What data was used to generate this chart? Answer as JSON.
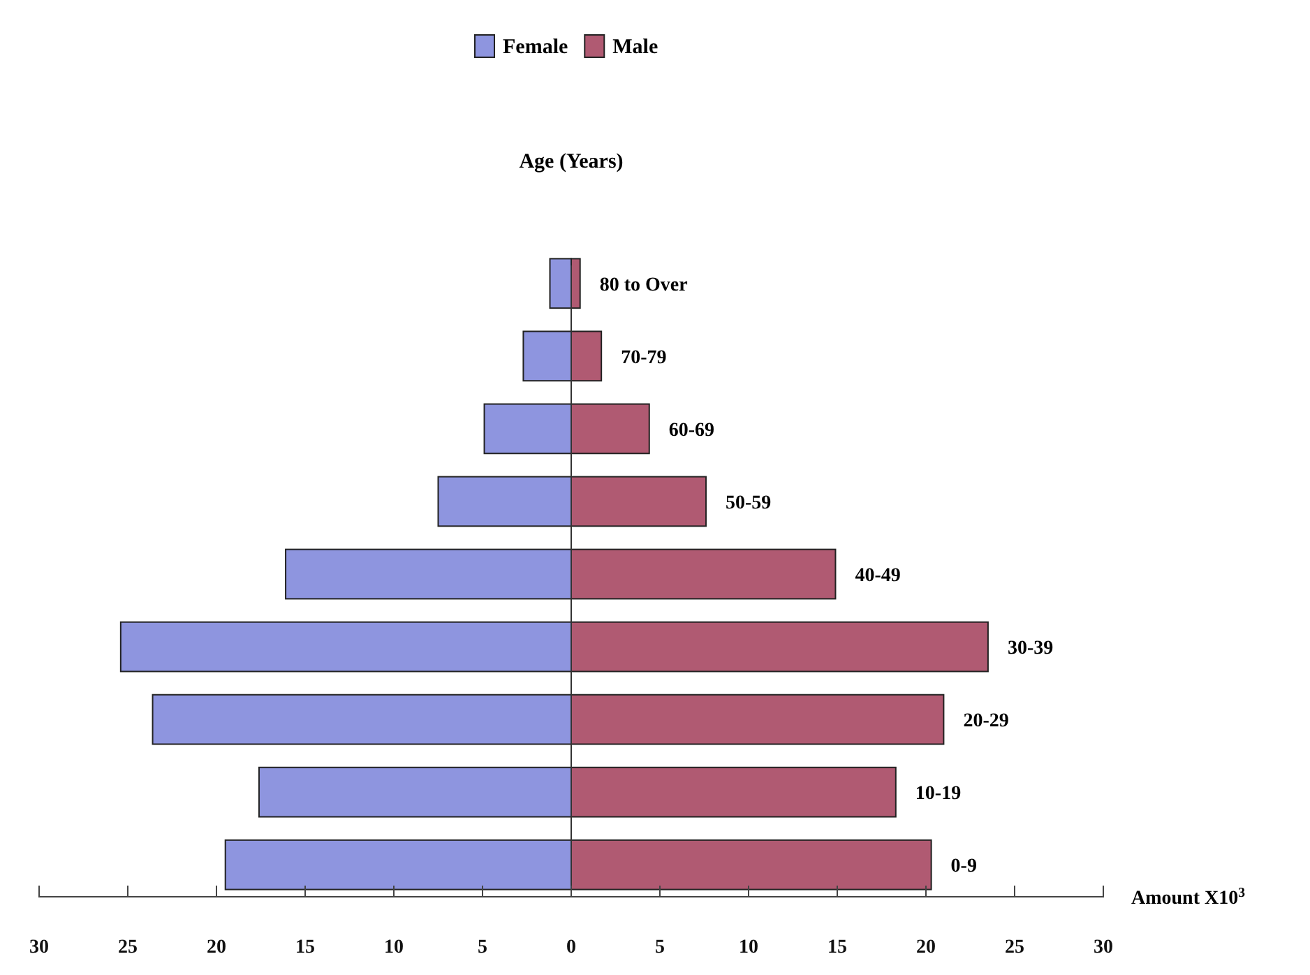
{
  "chart_data": {
    "type": "bar",
    "orientation": "horizontal",
    "stacked": true,
    "ylabel": "Age (Years)",
    "xlabel": "Amount X10$^{3}$",
    "categories": [
      "80 to Over",
      "70-79",
      "60-69",
      "50-59",
      "40-49",
      "30-39",
      "20-29",
      "10-19",
      "0-9"
    ],
    "series": [
      {
        "name": "Female",
        "color": "#8e95df",
        "values": [
          -1.2,
          -2.7,
          -4.9,
          -7.5,
          -16.1,
          -25.4,
          -23.6,
          -17.6,
          -19.5
        ]
      },
      {
        "name": "Male",
        "color": "#b05a72",
        "values": [
          0.5,
          1.7,
          4.4,
          7.6,
          14.9,
          23.5,
          21.0,
          18.3,
          20.3
        ]
      }
    ],
    "xlim": [
      -30,
      30
    ],
    "xticks": [
      {
        "value": -30,
        "label": "30"
      },
      {
        "value": -25,
        "label": "25"
      },
      {
        "value": -20,
        "label": "20"
      },
      {
        "value": -15,
        "label": "15"
      },
      {
        "value": -10,
        "label": "10"
      },
      {
        "value": -5,
        "label": "5"
      },
      0,
      5,
      10,
      15,
      20,
      25,
      30
    ],
    "legend": "top",
    "grid": false
  }
}
